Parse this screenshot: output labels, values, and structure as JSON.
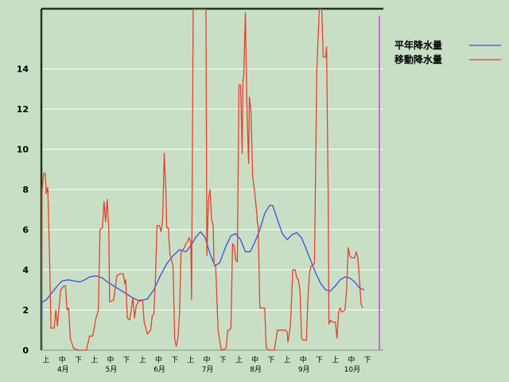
{
  "chart_data": {
    "type": "line",
    "y_ticks": [
      0,
      2,
      4,
      6,
      8,
      10,
      12,
      14
    ],
    "ylim": [
      0,
      17
    ],
    "grid": "horizontal",
    "legend_position": "top-right",
    "x_dekads": [
      "上",
      "中",
      "下",
      "上",
      "中",
      "下",
      "上",
      "中",
      "下",
      "上",
      "中",
      "下",
      "上",
      "中",
      "下",
      "上",
      "中",
      "下",
      "上",
      "中",
      "下"
    ],
    "x_months": [
      "4月",
      "5月",
      "6月",
      "7月",
      "8月",
      "9月",
      "10月"
    ],
    "x_range_dekads": [
      0,
      21.2
    ],
    "series": [
      {
        "name": "平年降水量",
        "color": "#3a50e0",
        "points": [
          [
            0,
            0
          ],
          [
            0.05,
            2.4
          ],
          [
            0.3,
            2.5
          ],
          [
            0.6,
            2.8
          ],
          [
            1.0,
            3.2
          ],
          [
            1.3,
            3.45
          ],
          [
            1.7,
            3.5
          ],
          [
            2.0,
            3.45
          ],
          [
            2.4,
            3.4
          ],
          [
            2.7,
            3.5
          ],
          [
            3.0,
            3.65
          ],
          [
            3.4,
            3.7
          ],
          [
            3.8,
            3.6
          ],
          [
            4.1,
            3.4
          ],
          [
            4.5,
            3.2
          ],
          [
            4.9,
            3.0
          ],
          [
            5.3,
            2.8
          ],
          [
            5.7,
            2.6
          ],
          [
            6.1,
            2.45
          ],
          [
            6.6,
            2.55
          ],
          [
            7.0,
            3.0
          ],
          [
            7.4,
            3.7
          ],
          [
            7.8,
            4.3
          ],
          [
            8.2,
            4.7
          ],
          [
            8.6,
            5.0
          ],
          [
            9.0,
            4.9
          ],
          [
            9.3,
            5.2
          ],
          [
            9.6,
            5.6
          ],
          [
            9.9,
            5.9
          ],
          [
            10.2,
            5.6
          ],
          [
            10.5,
            4.8
          ],
          [
            10.8,
            4.2
          ],
          [
            11.1,
            4.35
          ],
          [
            11.5,
            5.2
          ],
          [
            11.8,
            5.7
          ],
          [
            12.1,
            5.8
          ],
          [
            12.4,
            5.5
          ],
          [
            12.7,
            4.9
          ],
          [
            13.0,
            4.9
          ],
          [
            13.3,
            5.4
          ],
          [
            13.6,
            6.0
          ],
          [
            13.9,
            6.8
          ],
          [
            14.2,
            7.2
          ],
          [
            14.4,
            7.2
          ],
          [
            14.7,
            6.5
          ],
          [
            15.0,
            5.8
          ],
          [
            15.3,
            5.5
          ],
          [
            15.6,
            5.75
          ],
          [
            15.9,
            5.85
          ],
          [
            16.2,
            5.6
          ],
          [
            16.5,
            5.0
          ],
          [
            16.8,
            4.4
          ],
          [
            17.1,
            3.8
          ],
          [
            17.4,
            3.3
          ],
          [
            17.7,
            3.0
          ],
          [
            18.0,
            2.95
          ],
          [
            18.3,
            3.2
          ],
          [
            18.6,
            3.5
          ],
          [
            18.9,
            3.65
          ],
          [
            19.2,
            3.6
          ],
          [
            19.5,
            3.4
          ],
          [
            19.8,
            3.1
          ],
          [
            20.1,
            3.0
          ]
        ]
      },
      {
        "name": "移動降水量",
        "color": "#e8402a",
        "points": [
          [
            0,
            0
          ],
          [
            0.05,
            8.0
          ],
          [
            0.15,
            8.8
          ],
          [
            0.25,
            8.8
          ],
          [
            0.3,
            7.8
          ],
          [
            0.4,
            8.1
          ],
          [
            0.5,
            5.0
          ],
          [
            0.6,
            1.1
          ],
          [
            0.8,
            1.1
          ],
          [
            0.9,
            2.0
          ],
          [
            1.0,
            1.2
          ],
          [
            1.2,
            3.0
          ],
          [
            1.4,
            3.2
          ],
          [
            1.5,
            3.2
          ],
          [
            1.6,
            2.0
          ],
          [
            1.7,
            2.1
          ],
          [
            1.8,
            0.6
          ],
          [
            2.0,
            0.1
          ],
          [
            2.3,
            0.0
          ],
          [
            2.8,
            0.0
          ],
          [
            3.0,
            0.7
          ],
          [
            3.2,
            0.7
          ],
          [
            3.4,
            1.6
          ],
          [
            3.55,
            2.0
          ],
          [
            3.65,
            6.0
          ],
          [
            3.8,
            6.1
          ],
          [
            3.9,
            7.4
          ],
          [
            4.0,
            6.4
          ],
          [
            4.1,
            7.5
          ],
          [
            4.2,
            6.0
          ],
          [
            4.25,
            2.4
          ],
          [
            4.5,
            2.5
          ],
          [
            4.7,
            3.7
          ],
          [
            4.9,
            3.8
          ],
          [
            5.1,
            3.8
          ],
          [
            5.2,
            3.3
          ],
          [
            5.25,
            3.5
          ],
          [
            5.35,
            1.6
          ],
          [
            5.5,
            1.5
          ],
          [
            5.7,
            2.6
          ],
          [
            5.8,
            1.6
          ],
          [
            5.9,
            2.2
          ],
          [
            6.1,
            2.5
          ],
          [
            6.3,
            2.5
          ],
          [
            6.4,
            1.4
          ],
          [
            6.6,
            0.8
          ],
          [
            6.8,
            1.0
          ],
          [
            6.9,
            1.7
          ],
          [
            7.0,
            1.8
          ],
          [
            7.1,
            3.5
          ],
          [
            7.2,
            6.2
          ],
          [
            7.35,
            6.2
          ],
          [
            7.45,
            5.9
          ],
          [
            7.55,
            6.5
          ],
          [
            7.65,
            9.8
          ],
          [
            7.75,
            8.0
          ],
          [
            7.8,
            6.1
          ],
          [
            7.9,
            6.1
          ],
          [
            8.0,
            4.8
          ],
          [
            8.2,
            4.2
          ],
          [
            8.3,
            0.5
          ],
          [
            8.4,
            0.2
          ],
          [
            8.5,
            0.6
          ],
          [
            8.6,
            1.8
          ],
          [
            8.7,
            4.9
          ],
          [
            8.9,
            5.1
          ],
          [
            9.0,
            5.3
          ],
          [
            9.1,
            5.4
          ],
          [
            9.2,
            5.6
          ],
          [
            9.3,
            5.4
          ],
          [
            9.35,
            2.5
          ],
          [
            9.45,
            17.0
          ],
          [
            9.6,
            17.0
          ],
          [
            9.8,
            17.0
          ],
          [
            10.0,
            17.0
          ],
          [
            10.1,
            17.0
          ],
          [
            10.25,
            17.0
          ],
          [
            10.3,
            4.7
          ],
          [
            10.4,
            7.5
          ],
          [
            10.5,
            8.0
          ],
          [
            10.6,
            6.5
          ],
          [
            10.7,
            6.2
          ],
          [
            10.75,
            4.3
          ],
          [
            10.85,
            4.2
          ],
          [
            11.0,
            1.0
          ],
          [
            11.1,
            0.5
          ],
          [
            11.2,
            0.0
          ],
          [
            11.4,
            0.05
          ],
          [
            11.5,
            0.1
          ],
          [
            11.6,
            1.0
          ],
          [
            11.7,
            1.0
          ],
          [
            11.8,
            1.1
          ],
          [
            11.9,
            5.3
          ],
          [
            12.0,
            5.2
          ],
          [
            12.1,
            4.5
          ],
          [
            12.2,
            4.4
          ],
          [
            12.3,
            13.2
          ],
          [
            12.4,
            13.2
          ],
          [
            12.5,
            9.8
          ],
          [
            12.55,
            13.4
          ],
          [
            12.6,
            13.7
          ],
          [
            12.7,
            16.8
          ],
          [
            12.8,
            11.9
          ],
          [
            12.9,
            9.3
          ],
          [
            12.95,
            12.6
          ],
          [
            13.05,
            11.9
          ],
          [
            13.15,
            8.7
          ],
          [
            13.3,
            7.7
          ],
          [
            13.4,
            6.9
          ],
          [
            13.45,
            6.3
          ],
          [
            13.5,
            6.2
          ],
          [
            13.6,
            2.1
          ],
          [
            13.9,
            2.1
          ],
          [
            14.0,
            0.1
          ],
          [
            14.2,
            0.0
          ],
          [
            14.5,
            0.0
          ],
          [
            14.6,
            0.5
          ],
          [
            14.7,
            1.0
          ],
          [
            15.0,
            1.0
          ],
          [
            15.2,
            1.0
          ],
          [
            15.3,
            0.9
          ],
          [
            15.35,
            0.4
          ],
          [
            15.5,
            1.2
          ],
          [
            15.6,
            3.0
          ],
          [
            15.65,
            4.0
          ],
          [
            15.8,
            4.0
          ],
          [
            15.9,
            3.6
          ],
          [
            16.0,
            3.5
          ],
          [
            16.1,
            3.0
          ],
          [
            16.2,
            0.6
          ],
          [
            16.3,
            0.5
          ],
          [
            16.5,
            0.5
          ],
          [
            16.6,
            2.7
          ],
          [
            16.7,
            3.9
          ],
          [
            16.8,
            4.2
          ],
          [
            17.0,
            4.3
          ],
          [
            17.15,
            14.0
          ],
          [
            17.3,
            17.0
          ],
          [
            17.45,
            17.0
          ],
          [
            17.55,
            14.6
          ],
          [
            17.7,
            14.6
          ],
          [
            17.75,
            15.1
          ],
          [
            17.85,
            8.0
          ],
          [
            17.9,
            1.3
          ],
          [
            18.0,
            1.5
          ],
          [
            18.1,
            1.4
          ],
          [
            18.3,
            1.4
          ],
          [
            18.4,
            0.6
          ],
          [
            18.5,
            1.9
          ],
          [
            18.6,
            2.1
          ],
          [
            18.7,
            1.9
          ],
          [
            18.9,
            2.0
          ],
          [
            19.0,
            3.0
          ],
          [
            19.1,
            5.1
          ],
          [
            19.2,
            4.7
          ],
          [
            19.3,
            4.6
          ],
          [
            19.5,
            4.6
          ],
          [
            19.6,
            4.9
          ],
          [
            19.7,
            4.6
          ],
          [
            19.8,
            3.5
          ],
          [
            19.9,
            2.3
          ],
          [
            20.0,
            2.1
          ]
        ]
      }
    ]
  }
}
